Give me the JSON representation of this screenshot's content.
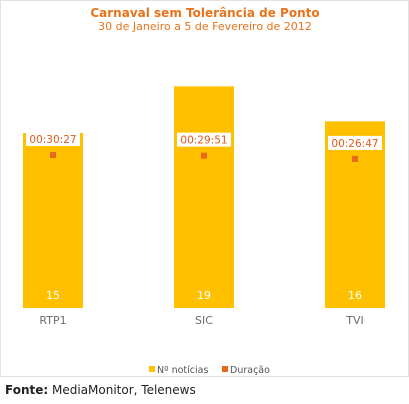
{
  "chart_data": {
    "type": "bar",
    "title": "Carnaval sem Tolerância de Ponto",
    "subtitle": "30 de Janeiro a 5 de Fevereiro de 2012",
    "categories": [
      "RTP1",
      "SIC",
      "TVI"
    ],
    "series": [
      {
        "name": "Nº notícias",
        "values": [
          15,
          19,
          16
        ],
        "color": "#ffc000"
      },
      {
        "name": "Duração",
        "values": [
          "00:30:27",
          "00:29:51",
          "00:26:47"
        ],
        "color": "#e8681e"
      }
    ],
    "grid": false,
    "legend": "bottom"
  },
  "source": {
    "label": "Fonte:",
    "text": "MediaMonitor, Telenews"
  }
}
